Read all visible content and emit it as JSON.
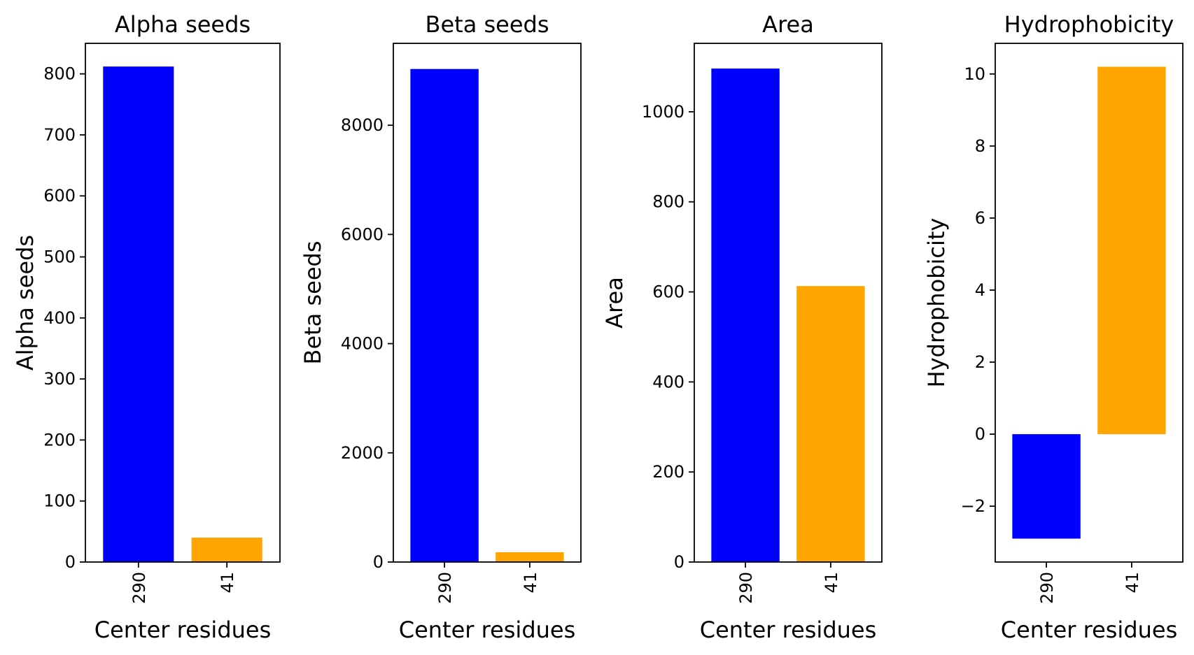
{
  "chart_data": [
    {
      "type": "bar",
      "title": "Alpha seeds",
      "xlabel": "Center residues",
      "ylabel": "Alpha seeds",
      "categories": [
        "290",
        "41"
      ],
      "values": [
        812,
        40
      ],
      "colors": [
        "#0000ff",
        "#ffa500"
      ],
      "ylim": [
        0,
        850
      ],
      "yticks": [
        0,
        100,
        200,
        300,
        400,
        500,
        600,
        700,
        800
      ],
      "ytick_labels": [
        "0",
        "100",
        "200",
        "300",
        "400",
        "500",
        "600",
        "700",
        "800"
      ],
      "grid": false
    },
    {
      "type": "bar",
      "title": "Beta seeds",
      "xlabel": "Center residues",
      "ylabel": "Beta seeds",
      "categories": [
        "290",
        "41"
      ],
      "values": [
        9030,
        180
      ],
      "colors": [
        "#0000ff",
        "#ffa500"
      ],
      "ylim": [
        0,
        9500
      ],
      "yticks": [
        0,
        2000,
        4000,
        6000,
        8000
      ],
      "ytick_labels": [
        "0",
        "2000",
        "4000",
        "6000",
        "8000"
      ],
      "grid": false
    },
    {
      "type": "bar",
      "title": "Area",
      "xlabel": "Center residues",
      "ylabel": "Area",
      "categories": [
        "290",
        "41"
      ],
      "values": [
        1096,
        613
      ],
      "colors": [
        "#0000ff",
        "#ffa500"
      ],
      "ylim": [
        0,
        1152
      ],
      "yticks": [
        0,
        200,
        400,
        600,
        800,
        1000
      ],
      "ytick_labels": [
        "0",
        "200",
        "400",
        "600",
        "800",
        "1000"
      ],
      "grid": false
    },
    {
      "type": "bar",
      "title": "Hydrophobicity",
      "xlabel": "Center residues",
      "ylabel": "Hydrophobicity",
      "categories": [
        "290",
        "41"
      ],
      "values": [
        -2.9,
        10.2
      ],
      "colors": [
        "#0000ff",
        "#ffa500"
      ],
      "ylim": [
        -3.55,
        10.85
      ],
      "yticks": [
        -2,
        0,
        2,
        4,
        6,
        8,
        10
      ],
      "ytick_labels": [
        "−2",
        "0",
        "2",
        "4",
        "6",
        "8",
        "10"
      ],
      "grid": false
    }
  ]
}
